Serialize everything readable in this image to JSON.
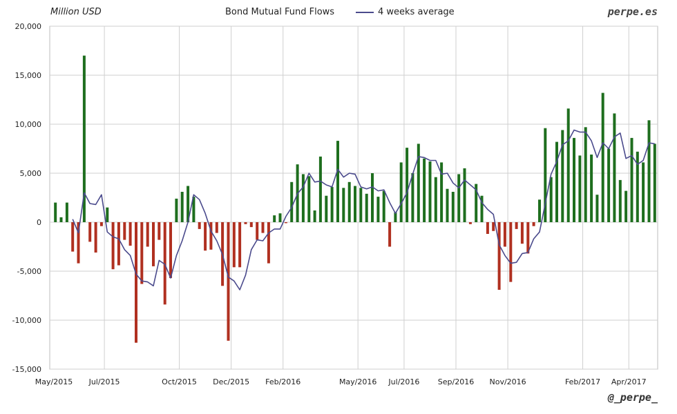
{
  "header": {
    "unit_label": "Million USD",
    "title": "Bond Mutual Fund Flows",
    "legend_label": "4 weeks average",
    "brand": "perpe.es"
  },
  "footer": {
    "handle": "@_perpe_"
  },
  "chart_data": {
    "type": "bar",
    "title": "Bond Mutual Fund Flows",
    "ylabel": "Million USD",
    "ylim": [
      -15000,
      20000
    ],
    "yticks": [
      "20,000",
      "15,000",
      "10,000",
      "5,000",
      "0",
      "-5,000",
      "-10,000",
      "-15,000"
    ],
    "xticks": [
      "May/2015",
      "Jul/2015",
      "Oct/2015",
      "Dec/2015",
      "Feb/2016",
      "May/2016",
      "Jul/2016",
      "Sep/2016",
      "Nov/2016",
      "Feb/2017",
      "Apr/2017"
    ],
    "grid": true,
    "colors": {
      "positive": "#1e6e1e",
      "negative": "#b03020",
      "average": "#4a4a8c",
      "grid": "#cfcfcf"
    },
    "series": [
      {
        "name": "Bond Mutual Fund Flows",
        "type": "bar",
        "values": [
          2000,
          500,
          2000,
          -3000,
          -4200,
          17000,
          -2000,
          -3100,
          -400,
          1500,
          -4800,
          -4400,
          -1800,
          -2400,
          -12300,
          -6300,
          -2500,
          -4500,
          -1800,
          -8400,
          -5700,
          2400,
          3100,
          3700,
          2600,
          -700,
          -2900,
          -2800,
          -1100,
          -6500,
          -12100,
          -4600,
          -4600,
          -200,
          -500,
          -1800,
          -1100,
          -4200,
          700,
          900,
          -100,
          4100,
          5900,
          4900,
          4700,
          1200,
          6700,
          2700,
          3600,
          8300,
          3500,
          4100,
          3700,
          3500,
          2900,
          5000,
          2600,
          3200,
          -2500,
          1000,
          6100,
          7600,
          5000,
          8000,
          6500,
          6200,
          4600,
          6100,
          3400,
          3100,
          4900,
          5500,
          -200,
          3900,
          2700,
          -1200,
          -900,
          -6900,
          -2500,
          -6100,
          -700,
          -2200,
          -3200,
          -400,
          2300,
          9600,
          4600,
          8200,
          9400,
          11600,
          8600,
          6800,
          9700,
          6900,
          2800,
          13200,
          7500,
          11100,
          4300,
          3200,
          8600,
          7200,
          6100,
          10400,
          8000
        ]
      },
      {
        "name": "4 weeks average",
        "type": "line",
        "values": [
          null,
          null,
          null,
          300,
          -1100,
          3000,
          1900,
          1800,
          2800,
          -1000,
          -1500,
          -1700,
          -2800,
          -3400,
          -5300,
          -6000,
          -6100,
          -6500,
          -3900,
          -4300,
          -5700,
          -3400,
          -1900,
          0,
          2800,
          2300,
          900,
          -900,
          -1900,
          -3300,
          -5600,
          -6000,
          -6900,
          -5400,
          -2800,
          -1800,
          -1900,
          -1100,
          -700,
          -700,
          600,
          1500,
          2900,
          3600,
          5000,
          4100,
          4200,
          3800,
          3600,
          5400,
          4600,
          5000,
          4900,
          3600,
          3400,
          3600,
          3200,
          3300,
          2000,
          900,
          1900,
          3000,
          4900,
          6700,
          6600,
          6300,
          6300,
          4900,
          5000,
          4000,
          3500,
          4300,
          3800,
          3300,
          2000,
          1300,
          800,
          -2300,
          -3400,
          -4200,
          -4100,
          -3200,
          -3100,
          -1700,
          -1000,
          1900,
          4900,
          6200,
          7900,
          8300,
          9400,
          9200,
          9200,
          8300,
          6600,
          8100,
          7500,
          8700,
          9100,
          6500,
          6800,
          5900,
          6300,
          8100,
          8000
        ]
      }
    ]
  }
}
